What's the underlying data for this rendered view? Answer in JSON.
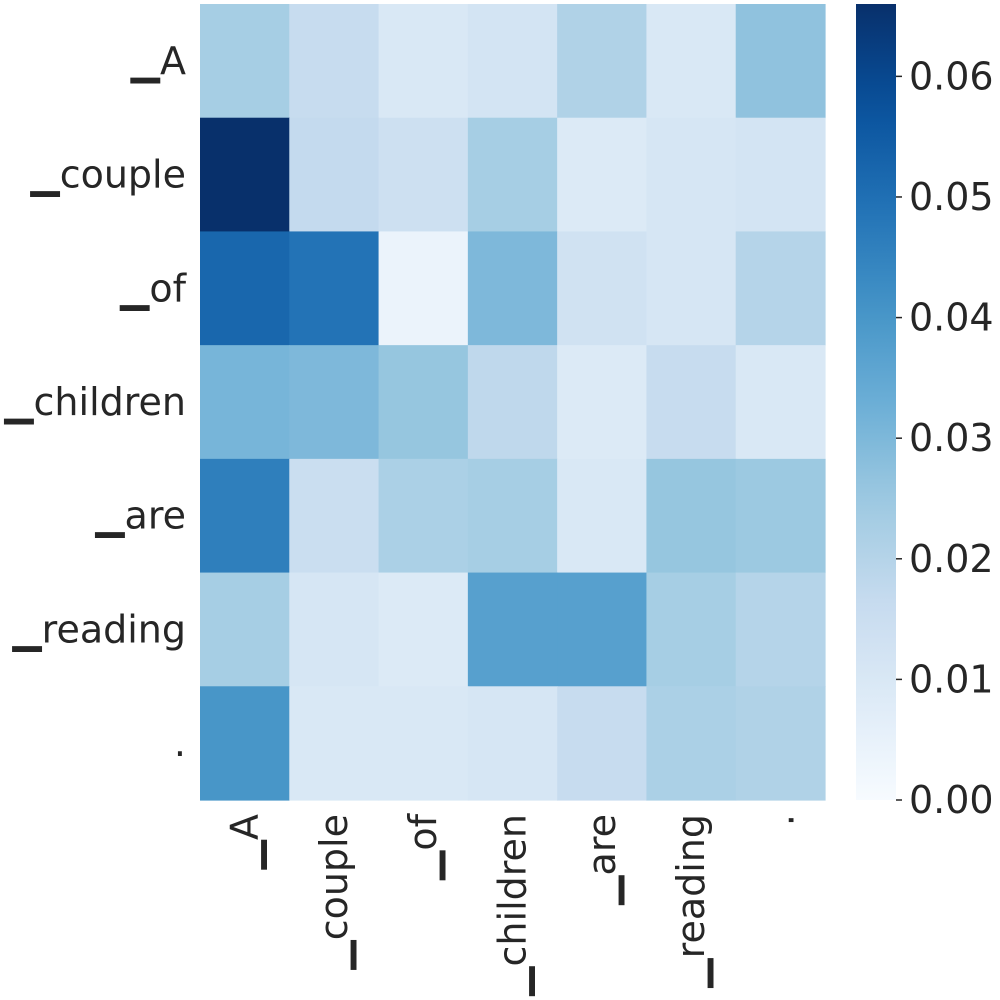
{
  "chart_data": {
    "type": "heatmap",
    "title": "",
    "xlabel": "",
    "ylabel": "",
    "row_labels": [
      "▁A",
      "▁couple",
      "▁of",
      "▁children",
      "▁are",
      "▁reading",
      "."
    ],
    "col_labels": [
      "▁A",
      "▁couple",
      "▁of",
      "▁children",
      "▁are",
      "▁reading",
      "."
    ],
    "values": [
      [
        0.023,
        0.016,
        0.01,
        0.012,
        0.021,
        0.01,
        0.027
      ],
      [
        0.066,
        0.017,
        0.014,
        0.023,
        0.009,
        0.011,
        0.012
      ],
      [
        0.052,
        0.049,
        0.004,
        0.03,
        0.013,
        0.011,
        0.02
      ],
      [
        0.031,
        0.03,
        0.026,
        0.018,
        0.009,
        0.016,
        0.01
      ],
      [
        0.046,
        0.015,
        0.022,
        0.023,
        0.01,
        0.026,
        0.025
      ],
      [
        0.023,
        0.011,
        0.009,
        0.037,
        0.037,
        0.023,
        0.02
      ],
      [
        0.04,
        0.01,
        0.01,
        0.011,
        0.016,
        0.022,
        0.021
      ]
    ],
    "colorbar": {
      "min": 0.0,
      "max": 0.066,
      "ticks": [
        0.0,
        0.01,
        0.02,
        0.03,
        0.04,
        0.05,
        0.06
      ],
      "tick_labels": [
        "0.00",
        "0.01",
        "0.02",
        "0.03",
        "0.04",
        "0.05",
        "0.06"
      ]
    },
    "colormap": {
      "name": "Blues",
      "stops": [
        "#f7fbff",
        "#deebf7",
        "#c6dbef",
        "#9ecae1",
        "#6baed6",
        "#4292c6",
        "#2171b5",
        "#08519c",
        "#08306b"
      ]
    }
  }
}
